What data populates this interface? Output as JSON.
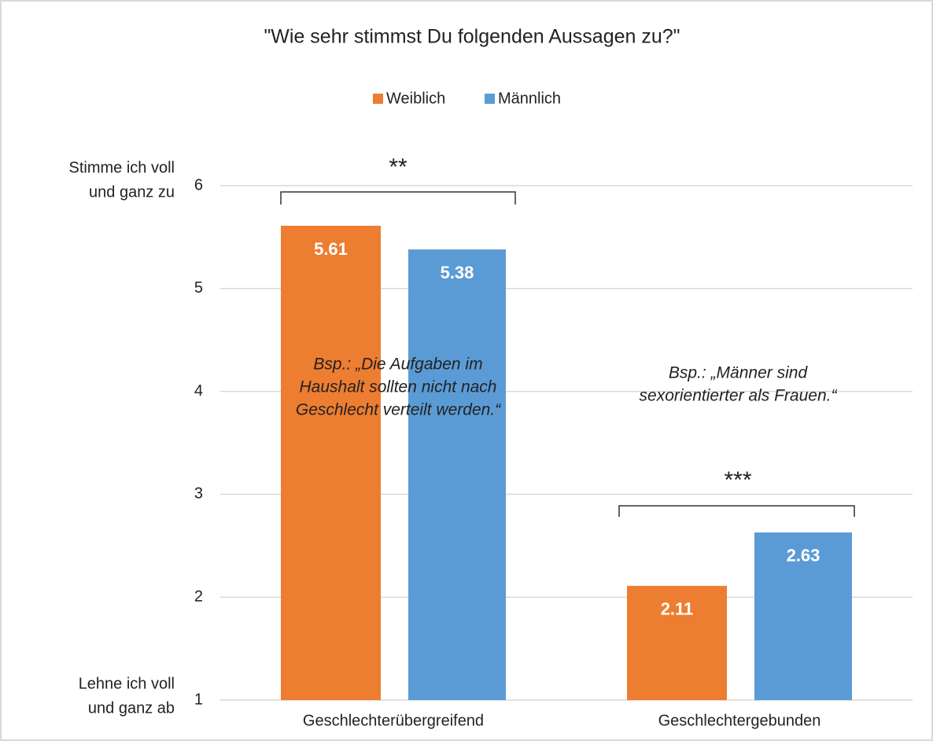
{
  "chart_data": {
    "type": "bar",
    "title": "\"Wie sehr stimmst Du folgenden Aussagen zu?\"",
    "categories": [
      "Geschlechterübergreifend",
      "Geschlechtergebunden"
    ],
    "series": [
      {
        "name": "Weiblich",
        "color": "#ed7d31",
        "values": [
          5.61,
          2.11
        ]
      },
      {
        "name": "Männlich",
        "color": "#5b9bd5",
        "values": [
          5.38,
          2.63
        ]
      }
    ],
    "ylim": [
      1,
      6
    ],
    "yticks": [
      1,
      2,
      3,
      4,
      5,
      6
    ],
    "grid": true,
    "legend": "top",
    "y_axis_top_label": [
      "Stimme ich voll",
      "und ganz zu"
    ],
    "y_axis_bottom_label": [
      "Lehne ich voll",
      "und ganz ab"
    ],
    "annotations": [
      {
        "text": [
          "**"
        ]
      },
      {
        "text": [
          "Bsp.: „Die Aufgaben im",
          "Haushalt sollten nicht nach",
          "Geschlecht verteilt werden.“"
        ]
      },
      {
        "text": [
          "***"
        ]
      },
      {
        "text": [
          "Bsp.: „Männer sind",
          "sexorientierter als Frauen.“"
        ]
      }
    ]
  }
}
